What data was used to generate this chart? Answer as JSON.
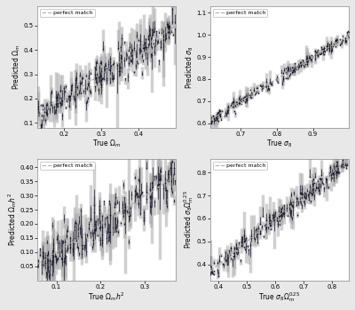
{
  "panels": [
    {
      "xlabel": "True $\\Omega_m$",
      "ylabel": "Predicted $\\Omega_m$",
      "xlim": [
        0.13,
        0.5
      ],
      "ylim": [
        0.08,
        0.58
      ],
      "xticks": [
        0.2,
        0.3,
        0.4
      ],
      "yticks": [
        0.1,
        0.2,
        0.3,
        0.4,
        0.5
      ],
      "true_range": [
        0.13,
        0.5
      ],
      "scatter": 0.035,
      "error_scale_lo": 0.035,
      "error_scale_hi": 0.035,
      "n_points": 250
    },
    {
      "xlabel": "True $\\sigma_8$",
      "ylabel": "Predicted $\\sigma_8$",
      "xlim": [
        0.615,
        1.0
      ],
      "ylim": [
        0.58,
        1.13
      ],
      "xticks": [
        0.7,
        0.8,
        0.9
      ],
      "yticks": [
        0.6,
        0.7,
        0.8,
        0.9,
        1.0,
        1.1
      ],
      "true_range": [
        0.615,
        1.0
      ],
      "scatter": 0.012,
      "error_scale_lo": 0.012,
      "error_scale_hi": 0.012,
      "n_points": 250
    },
    {
      "xlabel": "True $\\Omega_m h^2$",
      "ylabel": "Predicted $\\Omega_m h^2$",
      "xlim": [
        0.057,
        0.37
      ],
      "ylim": [
        0.0,
        0.43
      ],
      "xticks": [
        0.1,
        0.2,
        0.3
      ],
      "yticks": [
        0.05,
        0.1,
        0.15,
        0.2,
        0.25,
        0.3,
        0.35,
        0.4
      ],
      "true_range": [
        0.057,
        0.37
      ],
      "scatter": 0.04,
      "error_scale_lo": 0.04,
      "error_scale_hi": 0.04,
      "n_points": 250
    },
    {
      "xlabel": "True $\\sigma_8 \\Omega_m^{0.25}$",
      "ylabel": "Predicted $\\sigma_8 \\Omega_m^{0.25}$",
      "xlim": [
        0.37,
        0.86
      ],
      "ylim": [
        0.33,
        0.86
      ],
      "xticks": [
        0.4,
        0.5,
        0.6,
        0.7,
        0.8
      ],
      "yticks": [
        0.4,
        0.5,
        0.6,
        0.7,
        0.8
      ],
      "true_range": [
        0.37,
        0.86
      ],
      "scatter": 0.022,
      "error_scale_lo": 0.022,
      "error_scale_hi": 0.022,
      "n_points": 250
    }
  ],
  "point_color": "#111122",
  "error_color_dark": "#333344",
  "error_color_light": "#aaaaaa",
  "line_color": "#aaaaaa",
  "legend_label": "perfect match",
  "background_color": "#ffffff",
  "fig_background": "#e8e8e8"
}
